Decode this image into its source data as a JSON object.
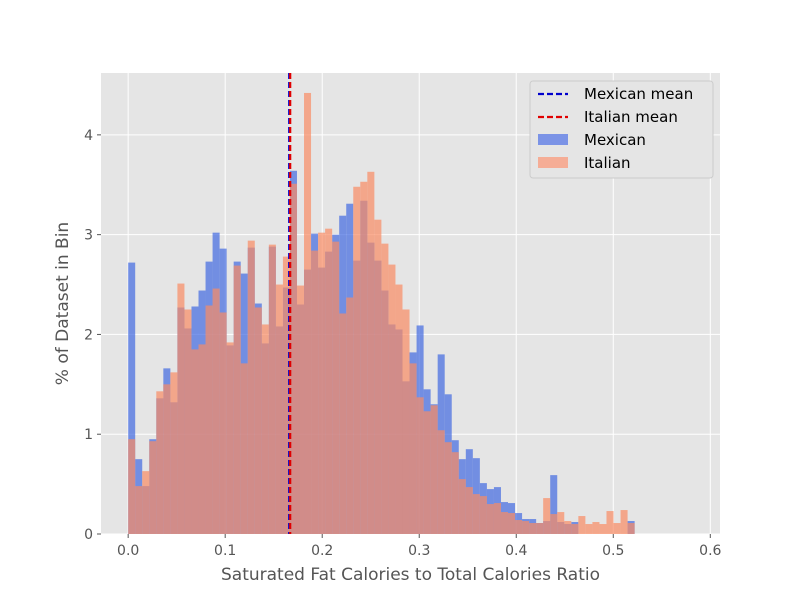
{
  "chart_data": {
    "type": "histogram",
    "title": "",
    "xlabel": "Saturated Fat Calories to Total Calories Ratio",
    "ylabel": "% of Dataset in Bin",
    "xlim": [
      -0.028,
      0.61
    ],
    "ylim": [
      0,
      4.62
    ],
    "xticks": [
      0.0,
      0.1,
      0.2,
      0.3,
      0.4,
      0.5,
      0.6
    ],
    "xtick_labels": [
      "0.0",
      "0.1",
      "0.2",
      "0.3",
      "0.4",
      "0.5",
      "0.6"
    ],
    "yticks": [
      0,
      1,
      2,
      3,
      4
    ],
    "ytick_labels": [
      "0",
      "1",
      "2",
      "3",
      "4"
    ],
    "grid": true,
    "legend_position": "top-right",
    "series": [
      {
        "name": "Mexican",
        "kind": "hist",
        "color": "#4169e1",
        "bin_start": 0.0,
        "bin_width": 0.00725,
        "values": [
          2.72,
          0.75,
          0.48,
          0.95,
          1.36,
          1.66,
          1.32,
          2.27,
          2.06,
          2.28,
          2.44,
          2.73,
          3.02,
          2.86,
          1.89,
          2.73,
          2.61,
          2.87,
          2.31,
          1.91,
          2.88,
          2.08,
          2.47,
          3.64,
          2.3,
          2.65,
          3.01,
          2.67,
          2.83,
          3.0,
          3.19,
          3.31,
          2.74,
          3.34,
          2.92,
          2.74,
          2.44,
          2.1,
          2.05,
          1.53,
          1.82,
          2.09,
          1.45,
          1.3,
          1.8,
          1.4,
          0.94,
          0.75,
          0.85,
          0.76,
          0.51,
          0.45,
          0.47,
          0.32,
          0.31,
          0.21,
          0.15,
          0.15,
          0.11,
          0.13,
          0.59,
          0.12,
          0.1,
          0.12,
          0,
          0,
          0,
          0,
          0,
          0,
          0,
          0.13
        ]
      },
      {
        "name": "Italian",
        "kind": "hist",
        "color": "#fa8c64",
        "bin_start": 0.0,
        "bin_width": 0.00725,
        "values": [
          0.95,
          0.48,
          0.63,
          0.93,
          1.43,
          1.5,
          1.62,
          2.51,
          2.25,
          1.85,
          1.9,
          2.29,
          2.46,
          2.22,
          1.92,
          2.69,
          1.71,
          2.94,
          2.27,
          2.1,
          2.9,
          2.5,
          2.78,
          3.51,
          2.49,
          4.42,
          2.84,
          3.02,
          3.06,
          2.93,
          2.21,
          2.37,
          3.48,
          3.53,
          3.63,
          3.15,
          2.91,
          2.7,
          2.5,
          2.25,
          1.71,
          1.37,
          1.23,
          1.29,
          1.04,
          0.92,
          0.82,
          0.55,
          0.47,
          0.4,
          0.38,
          0.3,
          0.31,
          0.22,
          0.21,
          0.14,
          0.13,
          0.11,
          0.11,
          0.36,
          0.2,
          0.22,
          0.13,
          0.1,
          0.18,
          0.1,
          0.12,
          0.1,
          0.23,
          0.11,
          0.24,
          0.11
        ]
      }
    ],
    "lines": [
      {
        "name": "Mexican mean",
        "x": 0.166,
        "color": "#0000cc",
        "style": "dashed"
      },
      {
        "name": "Italian mean",
        "x": 0.167,
        "color": "#e00000",
        "style": "dashed"
      }
    ],
    "legend": [
      {
        "label": "Mexican mean",
        "kind": "line",
        "color": "#0000cc"
      },
      {
        "label": "Italian mean",
        "kind": "line",
        "color": "#e00000"
      },
      {
        "label": "Mexican",
        "kind": "patch",
        "color": "#7b93e6"
      },
      {
        "label": "Italian",
        "kind": "patch",
        "color": "#f5ad96"
      }
    ]
  }
}
